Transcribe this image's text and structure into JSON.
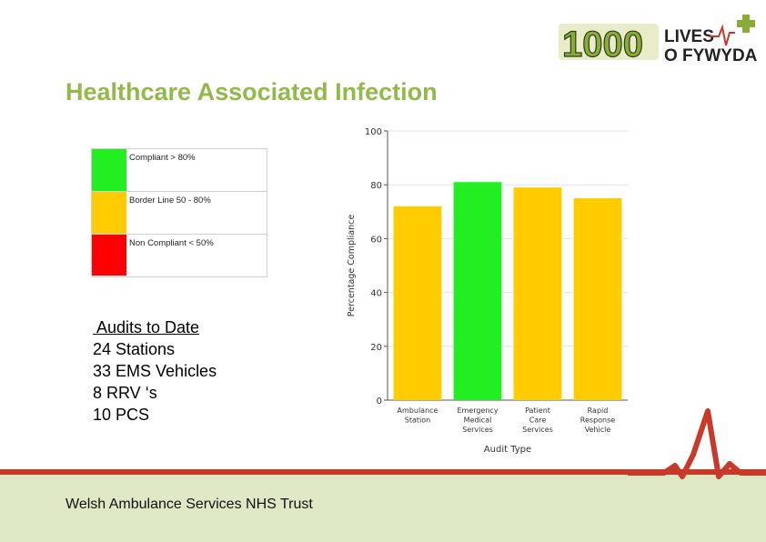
{
  "logo": {
    "number": "1000",
    "line1": "LIVES",
    "line2": "O FYWYDAU"
  },
  "page_title": "Healthcare Associated Infection",
  "legend": [
    {
      "label": "Compliant > 80%",
      "color": "#22ee22"
    },
    {
      "label": "Border Line 50 - 80%",
      "color": "#ffcc00"
    },
    {
      "label": "Non Compliant < 50%",
      "color": "#ff0000"
    }
  ],
  "audits": {
    "heading": " Audits to Date",
    "lines": [
      "24 Stations",
      "33 EMS Vehicles",
      "8 RRV ‘s",
      "10 PCS"
    ]
  },
  "chart_data": {
    "type": "bar",
    "categories": [
      [
        "Ambulance",
        "Station"
      ],
      [
        "Emergency",
        "Medical",
        "Services"
      ],
      [
        "Patient",
        "Care",
        "Services"
      ],
      [
        "Rapid",
        "Response",
        "Vehicle"
      ]
    ],
    "values": [
      72,
      81,
      79,
      75
    ],
    "colors": [
      "#ffcc00",
      "#22ee22",
      "#ffcc00",
      "#ffcc00"
    ],
    "xlabel": "Audit Type",
    "ylabel": "Percentage Compliance",
    "ylim": [
      0,
      100
    ],
    "yticks": [
      0,
      20,
      40,
      60,
      80,
      100
    ],
    "grid": true
  },
  "footer": {
    "text": "Welsh Ambulance Services NHS Trust"
  }
}
